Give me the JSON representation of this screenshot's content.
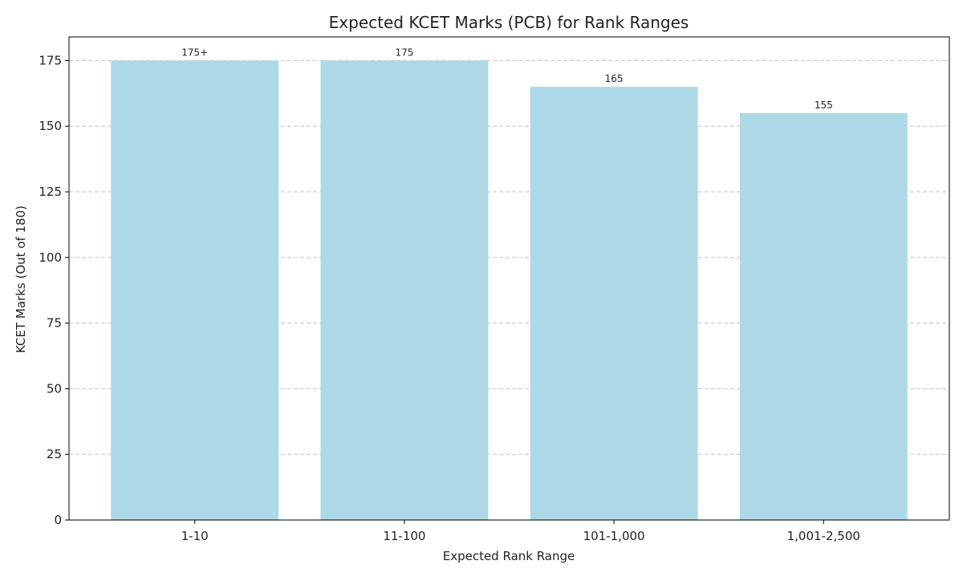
{
  "chart_data": {
    "type": "bar",
    "title": "Expected KCET Marks (PCB) for Rank Ranges",
    "xlabel": "Expected Rank Range",
    "ylabel": "KCET Marks (Out of 180)",
    "categories": [
      "1-10",
      "11-100",
      "101-1,000",
      "1,001-2,500"
    ],
    "values": [
      175,
      175,
      165,
      155
    ],
    "data_labels": [
      "175+",
      "175",
      "165",
      "155"
    ],
    "ylim": [
      0,
      184
    ],
    "yticks": [
      0,
      25,
      50,
      75,
      100,
      125,
      150,
      175
    ],
    "grid": "y-dashed",
    "legend": "none",
    "bar_color": "#add8e6"
  }
}
